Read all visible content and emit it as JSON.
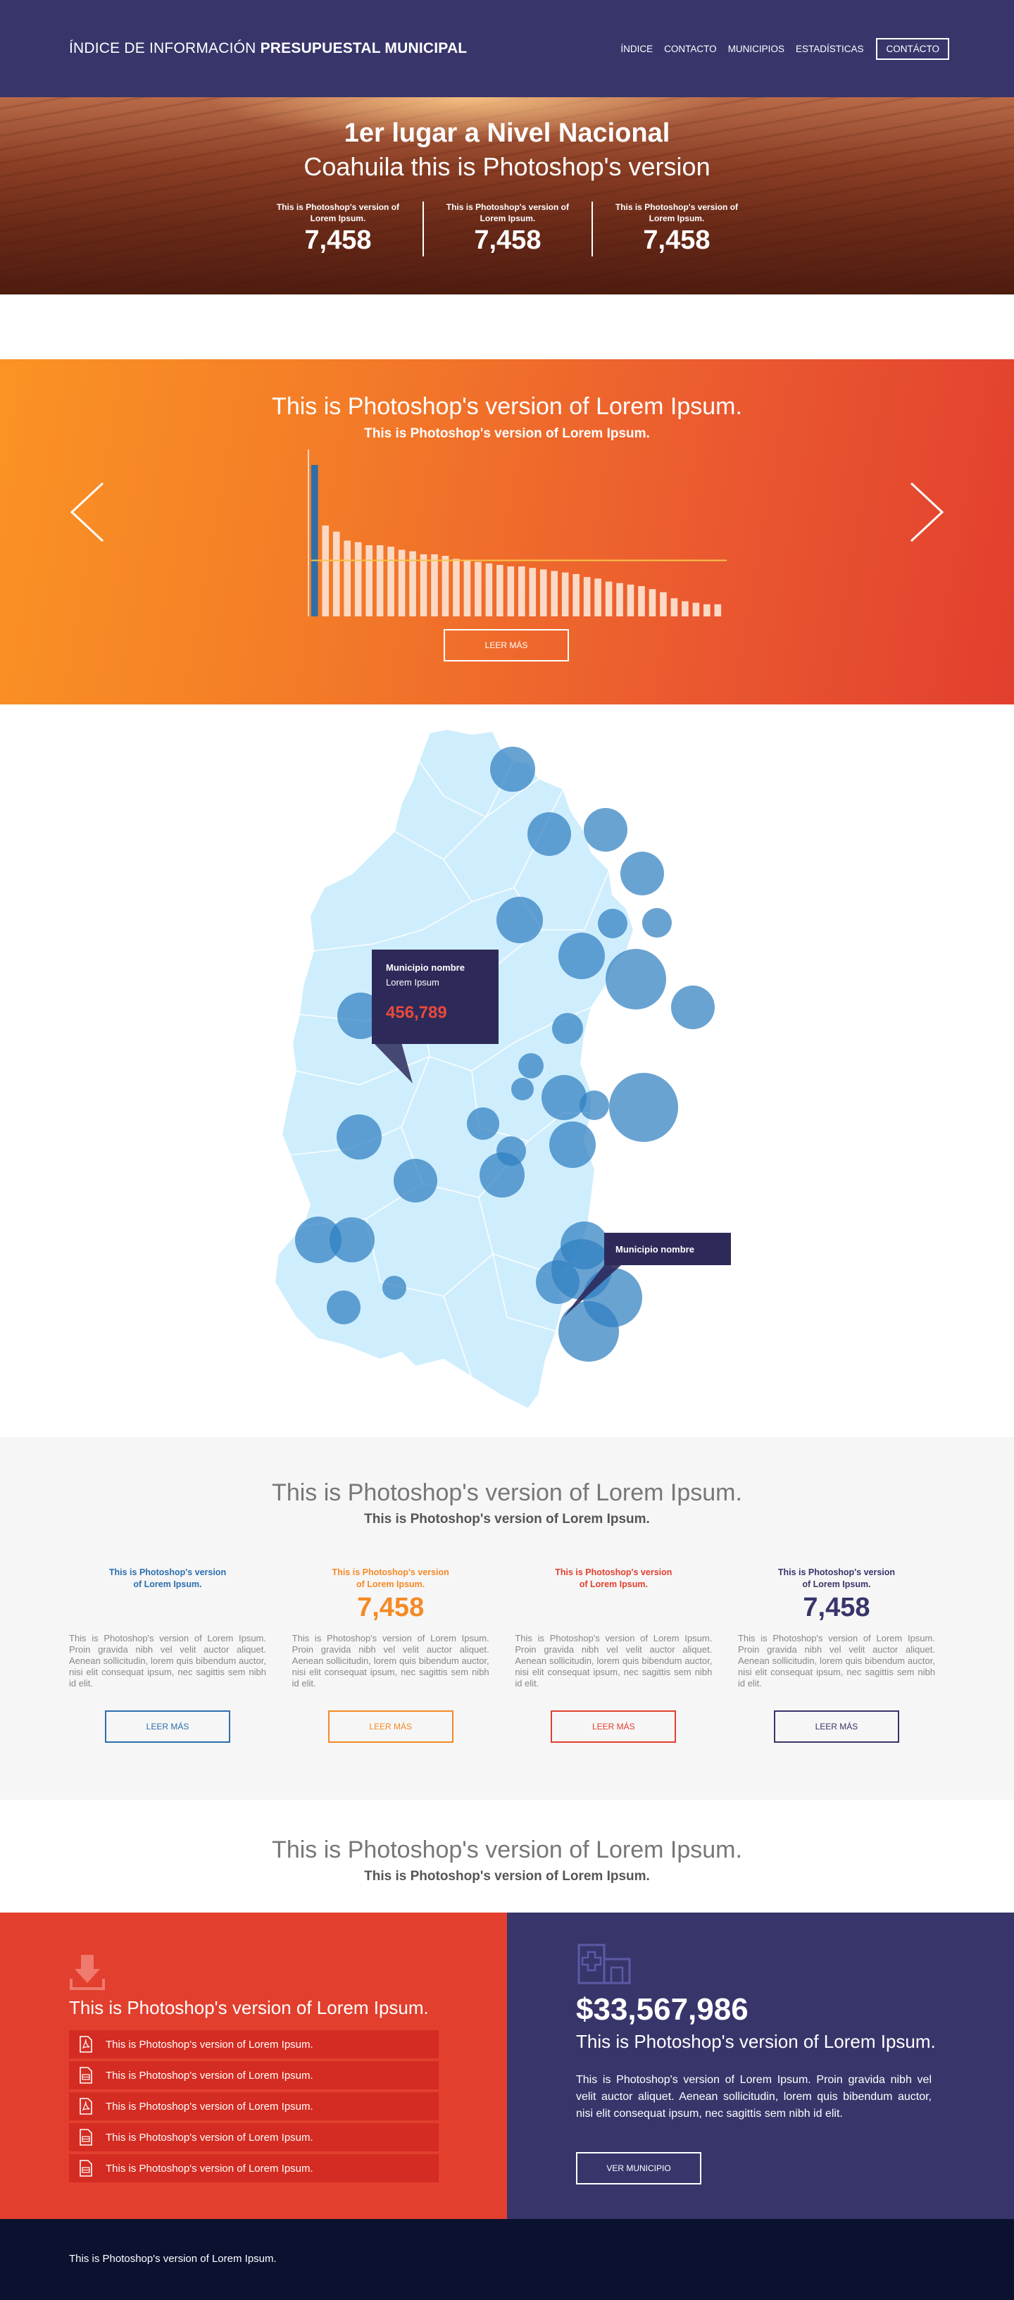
{
  "header": {
    "brand_light": "ÍNDICE DE INFORMACIÓN ",
    "brand_bold": "PRESUPUESTAL MUNICIPAL",
    "nav": [
      "ÍNDICE",
      "CONTACTO",
      "MUNICIPIOS",
      "ESTADÍSTICAS"
    ],
    "nav_button": "CONTÁCTO"
  },
  "hero": {
    "title": "1er lugar a Nivel Nacional",
    "subtitle": "Coahuila this is Photoshop's version",
    "stats": [
      {
        "label": "This is Photoshop's version of Lorem Ipsum.",
        "value": "7,458"
      },
      {
        "label": "This is Photoshop's version of Lorem Ipsum.",
        "value": "7,458"
      },
      {
        "label": "This is Photoshop's version of Lorem Ipsum.",
        "value": "7,458"
      }
    ]
  },
  "chart_section": {
    "title": "This is Photoshop's version of Lorem Ipsum.",
    "subtitle": "This is Photoshop's version of Lorem Ipsum.",
    "button": "LEER MÁS"
  },
  "chart_data": {
    "type": "bar",
    "highlight_color": "#2f6fa8",
    "bar_color": "#fbd9c4",
    "reference_line_color": "#f7c34a",
    "values": [
      100,
      60,
      56,
      50,
      49,
      47,
      47,
      46,
      44,
      43,
      41,
      41,
      40,
      38,
      37,
      36,
      35,
      34,
      33,
      33,
      32,
      31,
      30,
      29,
      28,
      26,
      25,
      23,
      22,
      21,
      20,
      18,
      16,
      12,
      10,
      9,
      8,
      8
    ],
    "reference_value": 37
  },
  "map": {
    "tooltip1": {
      "name": "Municipio nombre",
      "sub": "Lorem Ipsum",
      "value": "456,789"
    },
    "tooltip2": {
      "name": "Municipio nombre"
    },
    "bubble_color": "#2f7fc0",
    "land_color": "#cfeefd"
  },
  "stats_section": {
    "title": "This is Photoshop's version of Lorem Ipsum.",
    "subtitle": "This is Photoshop's version of Lorem Ipsum.",
    "cols": [
      {
        "title": "This is Photoshop's version of Lorem Ipsum.",
        "value": "",
        "text": "This is Photoshop's version of Lorem Ipsum. Proin gravida nibh vel velit auctor aliquet. Aenean sollicitudin, lorem quis bibendum auctor, nisi elit consequat ipsum, nec sagittis sem nibh id elit.",
        "button": "LEER MÁS",
        "color": "#2c6fae"
      },
      {
        "title": "This is Photoshop's version of Lorem Ipsum.",
        "value": "7,458",
        "text": "This is Photoshop's version of Lorem Ipsum. Proin gravida nibh vel velit auctor aliquet. Aenean sollicitudin, lorem quis bibendum auctor, nisi elit consequat ipsum, nec sagittis sem nibh id elit.",
        "button": "LEER MÁS",
        "color": "#f58a25"
      },
      {
        "title": "This is Photoshop's version of Lorem Ipsum.",
        "value": "",
        "text": "This is Photoshop's version of Lorem Ipsum. Proin gravida nibh vel velit auctor aliquet. Aenean sollicitudin, lorem quis bibendum auctor, nisi elit consequat ipsum, nec sagittis sem nibh id elit.",
        "button": "LEER MÁS",
        "color": "#e23f2e"
      },
      {
        "title": "This is Photoshop's version of Lorem Ipsum.",
        "value": "7,458",
        "text": "This is Photoshop's version of Lorem Ipsum. Proin gravida nibh vel velit auctor aliquet. Aenean sollicitudin, lorem quis bibendum auctor, nisi elit consequat ipsum, nec sagittis sem nibh id elit.",
        "button": "LEER MÁS",
        "color": "#38356b"
      }
    ]
  },
  "band": {
    "title": "This is Photoshop's version of Lorem Ipsum.",
    "subtitle": "This is Photoshop's version of Lorem Ipsum."
  },
  "downloads": {
    "icon": "download-icon",
    "title": "This is Photoshop's version of Lorem Ipsum.",
    "items": [
      {
        "icon": "pdf-icon",
        "label": "This is Photoshop's version of Lorem Ipsum."
      },
      {
        "icon": "xls-icon",
        "label": "This is Photoshop's version of Lorem Ipsum."
      },
      {
        "icon": "pdf-icon",
        "label": "This is Photoshop's version of Lorem Ipsum."
      },
      {
        "icon": "xls-icon",
        "label": "This is Photoshop's version of Lorem Ipsum."
      },
      {
        "icon": "xls-icon",
        "label": "This is Photoshop's version of Lorem Ipsum."
      }
    ]
  },
  "municipio": {
    "icon": "hospital-icon",
    "amount": "$33,567,986",
    "title": "This is Photoshop's version of Lorem Ipsum.",
    "text": "This is Photoshop's version of Lorem Ipsum. Proin gravida nibh vel velit auctor aliquet. Aenean sollicitudin, lorem quis bibendum auctor, nisi elit consequat ipsum, nec sagittis sem nibh id elit.",
    "button": "VER MUNICIPIO"
  },
  "footer": {
    "text": "This is Photoshop's version of Lorem Ipsum."
  }
}
